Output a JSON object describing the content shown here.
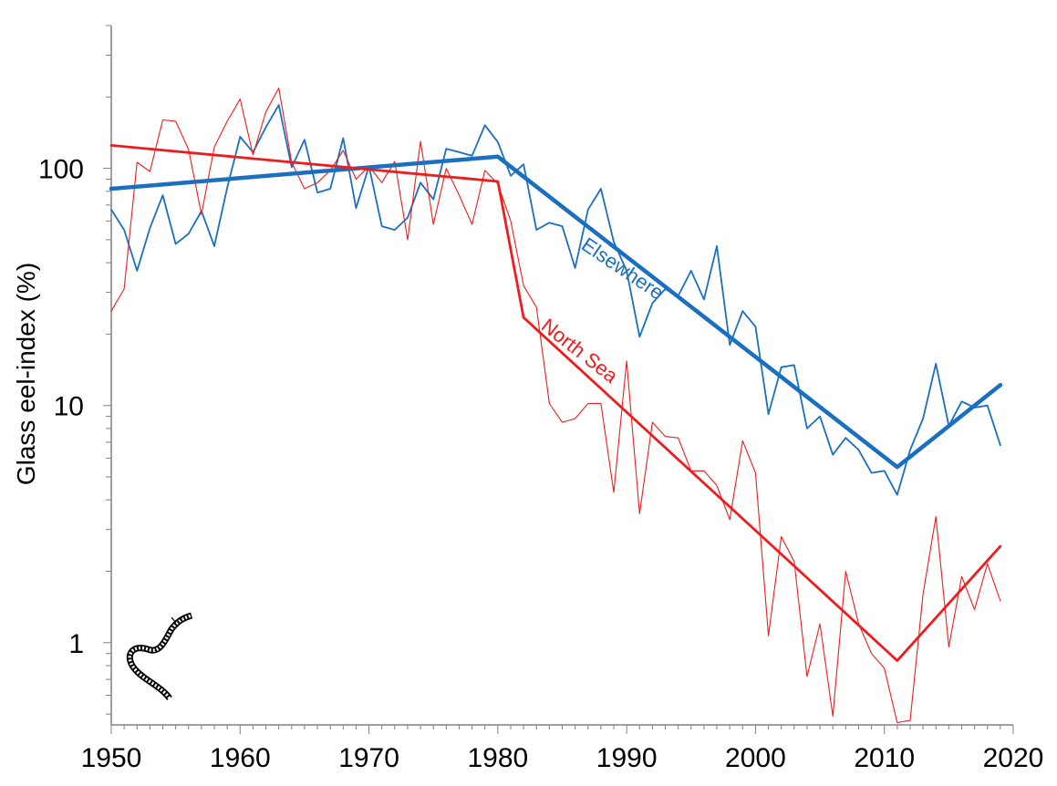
{
  "chart_data": {
    "type": "line",
    "title": "",
    "xlabel": "",
    "ylabel": "Glass eel-index (%)",
    "y_scale": "log",
    "xlim": [
      1950,
      2020
    ],
    "ylim": [
      0.45,
      400
    ],
    "grid": false,
    "x_ticks": [
      "1950",
      "1960",
      "1970",
      "1980",
      "1990",
      "2000",
      "2010",
      "2020"
    ],
    "y_ticks": [
      "1",
      "10",
      "100"
    ],
    "series_labels": [
      "Elsewhere",
      "North Sea"
    ],
    "colors": {
      "elsewhere": "#1a6fc0",
      "north_sea": "#ee1c1c",
      "axis": "#808080",
      "text": "#000000"
    },
    "series": [
      {
        "name": "Elsewhere",
        "kind": "observed",
        "x": [
          1950,
          1951,
          1952,
          1953,
          1954,
          1955,
          1956,
          1957,
          1958,
          1959,
          1960,
          1961,
          1962,
          1963,
          1964,
          1965,
          1966,
          1967,
          1968,
          1969,
          1970,
          1971,
          1972,
          1973,
          1974,
          1975,
          1976,
          1977,
          1978,
          1979,
          1980,
          1981,
          1982,
          1983,
          1984,
          1985,
          1986,
          1987,
          1988,
          1989,
          1990,
          1991,
          1992,
          1993,
          1994,
          1995,
          1996,
          1997,
          1998,
          1999,
          2000,
          2001,
          2002,
          2003,
          2004,
          2005,
          2006,
          2007,
          2008,
          2009,
          2010,
          2011,
          2012,
          2013,
          2014,
          2015,
          2016,
          2017,
          2018,
          2019
        ],
        "values": [
          67,
          55,
          37,
          56,
          77,
          48,
          53,
          66,
          47,
          83,
          136,
          117,
          149,
          185,
          101,
          132,
          79,
          82,
          134,
          68,
          102,
          57,
          55,
          62,
          87,
          74,
          121,
          117,
          113,
          152,
          129,
          93,
          104,
          55,
          59,
          57,
          38,
          67,
          82,
          49,
          37,
          19.5,
          27,
          31,
          29,
          37,
          28,
          47,
          18,
          25,
          21.5,
          9.2,
          14.5,
          14.8,
          8,
          9,
          6.2,
          7.3,
          6.5,
          5.2,
          5.3,
          4.2,
          6.5,
          8.8,
          15,
          8.2,
          10.4,
          9.8,
          10,
          6.8
        ]
      },
      {
        "name": "North Sea",
        "kind": "observed",
        "x": [
          1950,
          1951,
          1952,
          1953,
          1954,
          1955,
          1956,
          1957,
          1958,
          1959,
          1960,
          1961,
          1962,
          1963,
          1964,
          1965,
          1966,
          1967,
          1968,
          1969,
          1970,
          1971,
          1972,
          1973,
          1974,
          1975,
          1976,
          1977,
          1978,
          1979,
          1980,
          1981,
          1982,
          1983,
          1984,
          1985,
          1986,
          1987,
          1988,
          1989,
          1990,
          1991,
          1992,
          1993,
          1994,
          1995,
          1996,
          1997,
          1998,
          1999,
          2000,
          2001,
          2002,
          2003,
          2004,
          2005,
          2006,
          2007,
          2008,
          2009,
          2010,
          2011,
          2012,
          2013,
          2014,
          2015,
          2016,
          2017,
          2018,
          2019
        ],
        "values": [
          25,
          31,
          106,
          97,
          160,
          158,
          120,
          64,
          123,
          158,
          196,
          114,
          173,
          218,
          106,
          82,
          87,
          98,
          119,
          90,
          102,
          87,
          107,
          50,
          130,
          58,
          100,
          77,
          58,
          98,
          86,
          60,
          32,
          26,
          10.2,
          8.5,
          8.8,
          10.2,
          10.2,
          4.3,
          15.4,
          3.5,
          8.5,
          7.4,
          7.3,
          5.3,
          5.3,
          4.6,
          3.3,
          7.1,
          5.2,
          1.07,
          2.8,
          2.2,
          0.72,
          1.2,
          0.49,
          2.0,
          1.2,
          0.9,
          0.78,
          0.46,
          0.47,
          1.6,
          3.4,
          0.96,
          1.9,
          1.38,
          2.15,
          1.5
        ]
      },
      {
        "name": "Elsewhere",
        "kind": "trend",
        "x": [
          1950,
          1980,
          2011,
          2019
        ],
        "values": [
          82,
          112,
          5.5,
          12.2
        ]
      },
      {
        "name": "North Sea",
        "kind": "trend",
        "x": [
          1950,
          1980,
          1982,
          2011,
          2019
        ],
        "values": [
          125,
          88,
          23.5,
          0.84,
          2.55
        ]
      }
    ]
  }
}
